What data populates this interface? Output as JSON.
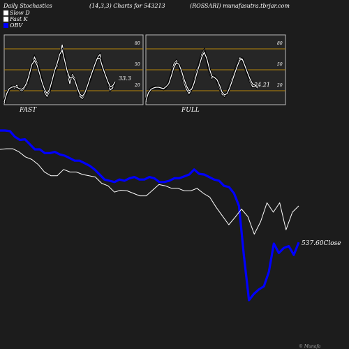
{
  "header": {
    "left": "Daily Stochastics",
    "middle": "(14,3,3) Charts for 543213",
    "right": "(ROSSARI) munafasutra.tbrjar.com"
  },
  "legend": [
    {
      "label": "Slow  D",
      "color": "#ffffff"
    },
    {
      "label": "Fast K",
      "color": "#ffffff"
    },
    {
      "label": "OBV",
      "color": "#0000ff"
    }
  ],
  "watermark": "© Munafa",
  "colors": {
    "background": "#1c1c1c",
    "panel": "#262626",
    "level": "#b8860b",
    "obv": "#0000ff",
    "price": "#ffffff"
  },
  "chart_data": [
    {
      "type": "line",
      "title": "FAST",
      "levels": [
        80,
        50,
        20
      ],
      "ylim": [
        0,
        100
      ],
      "value_label": "33.3",
      "series": [
        {
          "values": [
            2,
            14,
            22,
            26,
            24,
            28,
            22,
            20,
            23,
            29,
            40,
            56,
            68,
            60,
            48,
            34,
            18,
            12,
            19,
            33,
            48,
            55,
            68,
            86,
            64,
            46,
            30,
            43,
            38,
            24,
            12,
            9,
            15,
            26,
            35,
            47,
            55,
            68,
            72,
            52,
            44,
            34,
            21,
            24,
            33
          ]
        },
        {
          "values": [
            4,
            16,
            23,
            25,
            26,
            25,
            23,
            22,
            25,
            32,
            44,
            58,
            63,
            57,
            45,
            32,
            22,
            16,
            22,
            35,
            49,
            59,
            72,
            78,
            63,
            48,
            38,
            40,
            35,
            24,
            15,
            12,
            17,
            27,
            38,
            48,
            58,
            67,
            66,
            54,
            44,
            34,
            26,
            27,
            33
          ]
        }
      ]
    },
    {
      "type": "line",
      "title": "FULL",
      "levels": [
        80,
        50,
        20
      ],
      "ylim": [
        0,
        100
      ],
      "value_label": "24.21",
      "series": [
        {
          "values": [
            4,
            16,
            23,
            25,
            26,
            25,
            23,
            22,
            25,
            32,
            44,
            58,
            63,
            57,
            45,
            32,
            22,
            16,
            22,
            35,
            49,
            59,
            72,
            78,
            63,
            48,
            38,
            40,
            35,
            24,
            15,
            12,
            17,
            27,
            38,
            48,
            58,
            67,
            66,
            54,
            44,
            34,
            26,
            27,
            24
          ]
        },
        {
          "values": [
            6,
            17,
            22,
            24,
            25,
            25,
            24,
            23,
            26,
            30,
            41,
            53,
            60,
            58,
            49,
            37,
            27,
            20,
            22,
            31,
            44,
            56,
            68,
            75,
            66,
            52,
            41,
            39,
            36,
            28,
            18,
            14,
            16,
            24,
            34,
            45,
            55,
            64,
            65,
            56,
            46,
            37,
            30,
            28,
            26
          ]
        }
      ]
    },
    {
      "type": "line",
      "value_label": "537.60",
      "value_suffix": "Close",
      "series": [
        {
          "name": "OBV",
          "values": [
            70,
            70,
            69,
            60,
            55,
            56,
            48,
            40,
            40,
            34,
            34,
            36,
            32,
            30,
            26,
            22,
            22,
            18,
            14,
            8,
            0,
            -8,
            -10,
            -12,
            -8,
            -10,
            -6,
            -4,
            -8,
            -8,
            -4,
            -6,
            -12,
            -12,
            -10,
            -6,
            -6,
            -3,
            0,
            8,
            1,
            0,
            -4,
            -8,
            -10,
            -18,
            -20,
            -30,
            -50,
            -130,
            -200,
            -190,
            -183,
            -178,
            -155,
            -110,
            -125,
            -117,
            -114,
            -128,
            -108
          ]
        },
        {
          "name": "Close",
          "values": [
            40,
            41,
            41,
            36,
            28,
            24,
            16,
            4,
            -2,
            -2,
            8,
            4,
            4,
            0,
            -2,
            -4,
            -14,
            -18,
            -28,
            -25,
            -26,
            -30,
            -34,
            -34,
            -25,
            -16,
            -18,
            -22,
            -22,
            -26,
            -26,
            -22,
            -30,
            -36,
            -52,
            -66,
            -80,
            -68,
            -55,
            -67,
            -95,
            -75,
            -45,
            -60,
            -45,
            -88,
            -60,
            -50
          ]
        }
      ]
    }
  ]
}
